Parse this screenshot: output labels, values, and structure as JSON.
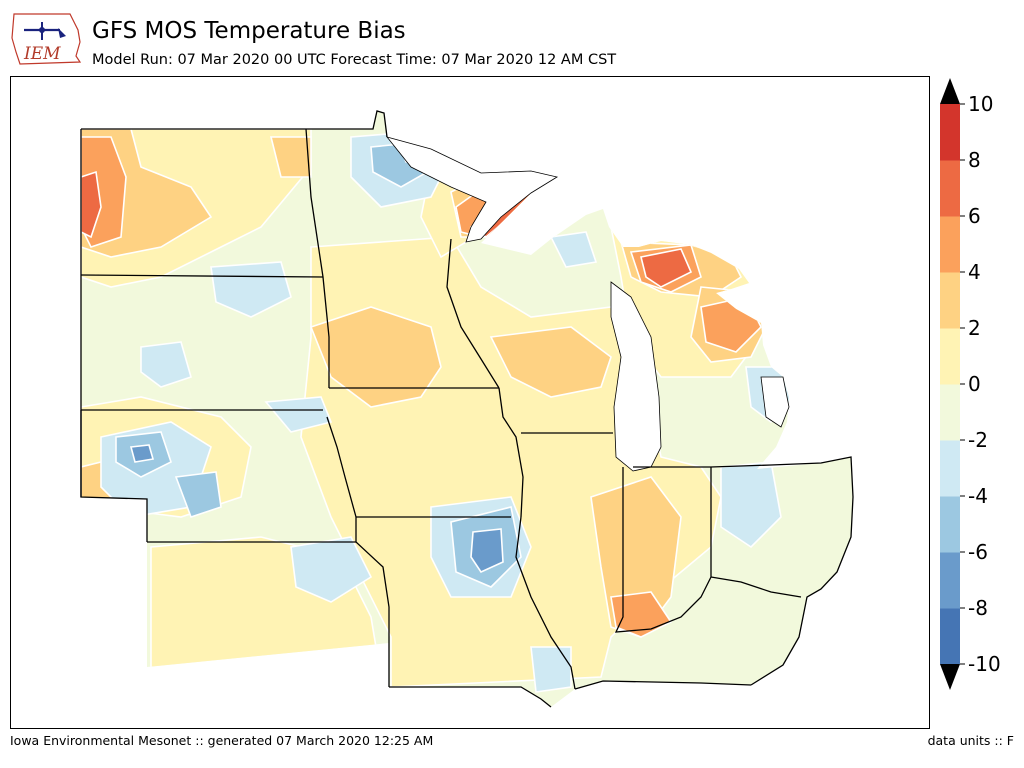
{
  "header": {
    "logo_text": "IEM",
    "title": "GFS MOS Temperature Bias",
    "subtitle": "Model Run: 07 Mar 2020 00 UTC Forecast Time: 07 Mar 2020 12 AM CST"
  },
  "footer": {
    "left": "Iowa Environmental Mesonet :: generated 07 March 2020 12:25 AM",
    "right": "data units :: F"
  },
  "colorbar": {
    "levels": [
      -10,
      -8,
      -6,
      -4,
      -2,
      0,
      2,
      4,
      6,
      8,
      10
    ],
    "tick_labels": [
      "-10",
      "-8",
      "-6",
      "-4",
      "-2",
      "0",
      "2",
      "4",
      "6",
      "8",
      "10"
    ],
    "colors": [
      "#4575b4",
      "#6a9bcb",
      "#9cc8e1",
      "#cfe9f3",
      "#f2f9dc",
      "#fff3b4",
      "#fed283",
      "#fba15c",
      "#ed6a43",
      "#d3352c"
    ]
  },
  "map": {
    "colors": {
      "lake": "#ffffff",
      "border": "#000000",
      "contour": "#ffffff",
      "background": "#f2f9dc"
    }
  }
}
